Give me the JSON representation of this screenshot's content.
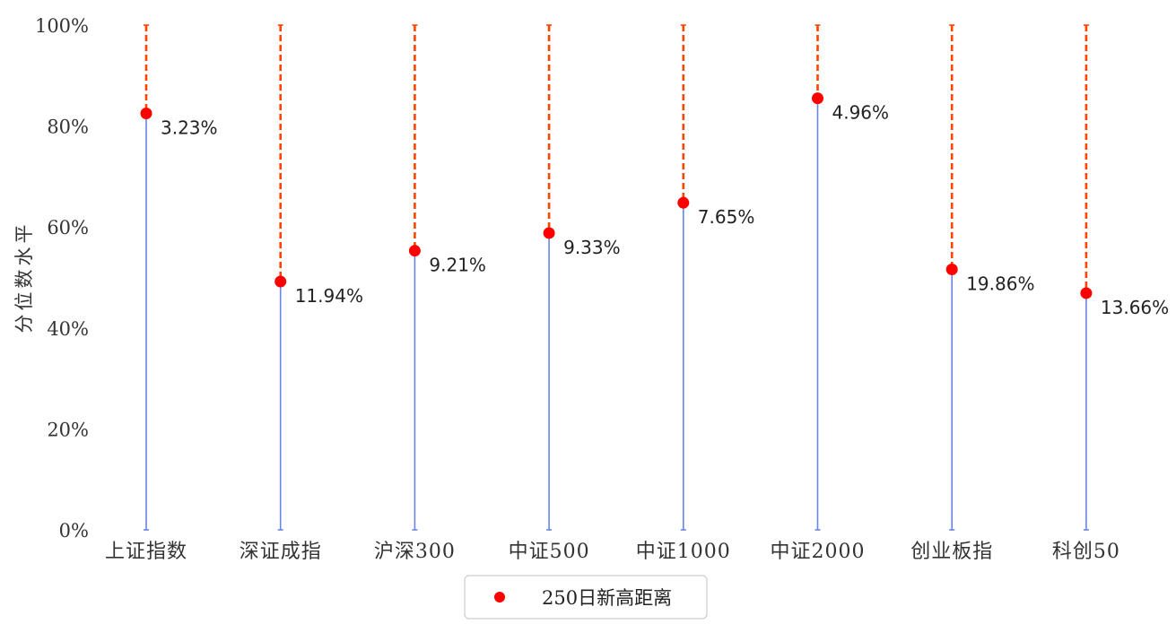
{
  "chart_data": {
    "type": "lollipop",
    "title": "",
    "ylabel": "分位数水平",
    "xlabel": "",
    "ylim": [
      0,
      100
    ],
    "y_ticks": [
      "0%",
      "20%",
      "40%",
      "60%",
      "80%",
      "100%"
    ],
    "grid": false,
    "legend_position": "bottom-center",
    "categories": [
      "上证指数",
      "深证成指",
      "沪深300",
      "中证500",
      "中证1000",
      "中证2000",
      "创业板指",
      "科创50"
    ],
    "series": [
      {
        "name": "250日新高距离",
        "values": [
          82.5,
          49.2,
          55.3,
          58.8,
          64.8,
          85.5,
          51.6,
          46.9
        ],
        "labels": [
          "3.23%",
          "11.94%",
          "9.21%",
          "9.33%",
          "7.65%",
          "4.96%",
          "19.86%",
          "13.66%"
        ]
      }
    ],
    "colors": {
      "stem": "#6a85e6",
      "gap": "#ff4500",
      "marker": "#ff0000",
      "axis_text": "#333333"
    }
  }
}
